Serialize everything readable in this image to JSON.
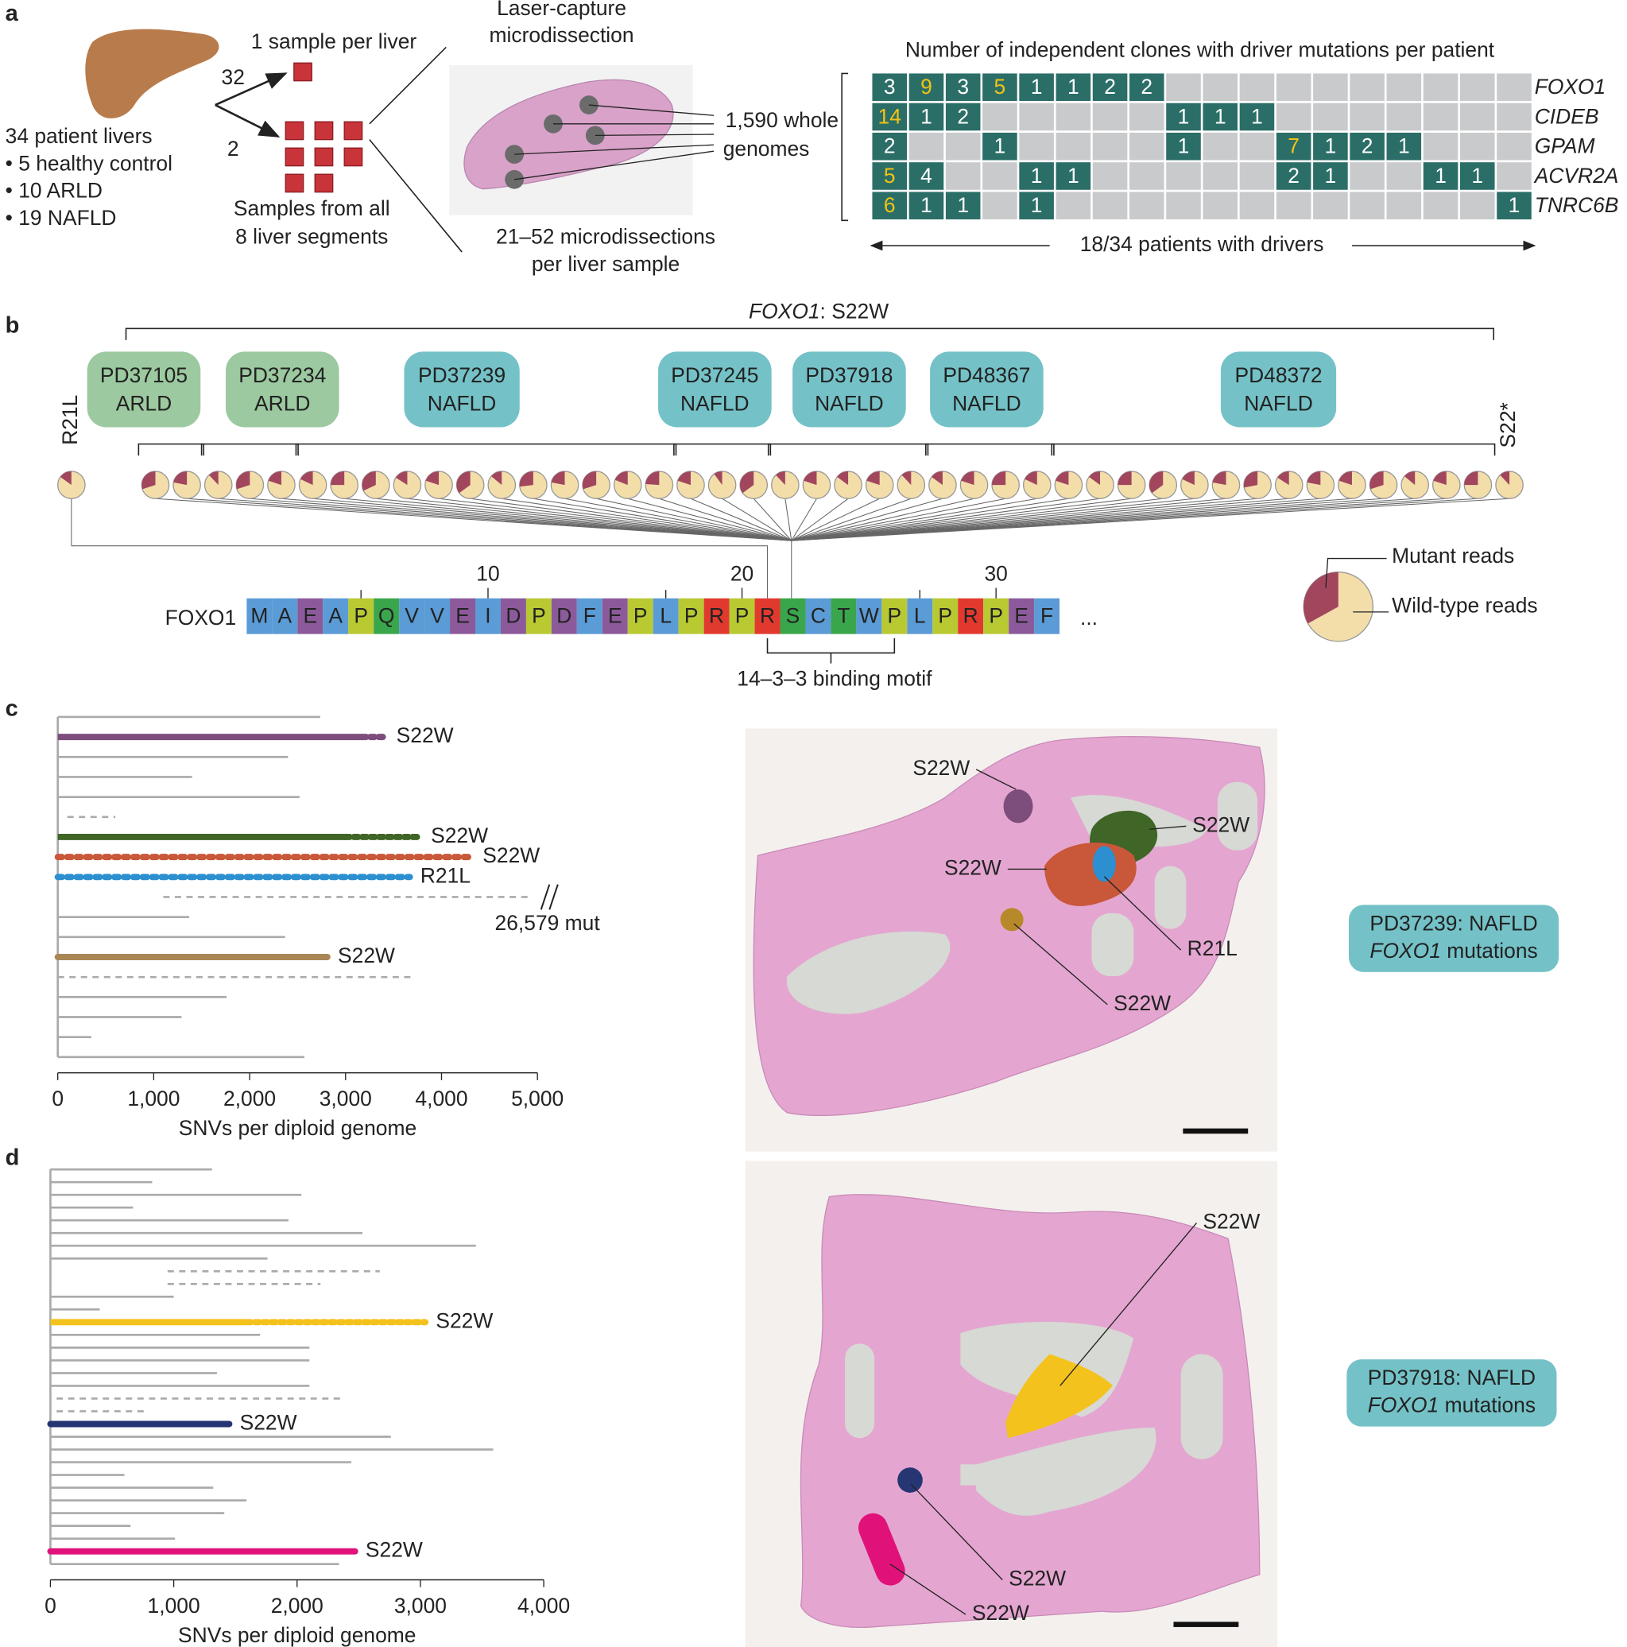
{
  "panel_labels": [
    "a",
    "b",
    "c",
    "d"
  ],
  "panel_a": {
    "livers": [
      "34 patient livers",
      "• 5 healthy control",
      "• 10 ARLD",
      "• 19 NAFLD"
    ],
    "arrow_labels": [
      "32",
      "2"
    ],
    "one_sample": "1 sample per liver",
    "all_segments": [
      "Samples from all",
      "8 liver segments"
    ],
    "lcm": [
      "Laser-capture",
      "microdissection"
    ],
    "genomes": [
      "1,590 whole",
      "genomes"
    ],
    "microdissections": [
      "21–52 microdissections",
      "per liver sample"
    ],
    "heatmap": {
      "title": "Number of independent clones with driver mutations per patient",
      "genes": [
        "FOXO1",
        "CIDEB",
        "GPAM",
        "ACVR2A",
        "TNRC6B"
      ],
      "cells": [
        [
          3,
          9,
          3,
          5,
          1,
          1,
          2,
          2,
          null,
          null,
          null,
          null,
          null,
          null,
          null,
          null,
          null,
          null
        ],
        [
          14,
          1,
          2,
          null,
          null,
          null,
          null,
          null,
          1,
          1,
          1,
          null,
          null,
          null,
          null,
          null,
          null,
          null
        ],
        [
          2,
          null,
          null,
          1,
          null,
          null,
          null,
          null,
          1,
          null,
          null,
          7,
          1,
          2,
          1,
          null,
          null,
          null
        ],
        [
          5,
          4,
          null,
          null,
          1,
          1,
          null,
          null,
          null,
          null,
          null,
          2,
          1,
          null,
          null,
          1,
          1,
          null
        ],
        [
          6,
          1,
          1,
          null,
          1,
          null,
          null,
          null,
          null,
          null,
          null,
          null,
          null,
          null,
          null,
          null,
          null,
          1
        ]
      ],
      "highlighted_columns": [
        [
          1,
          3
        ],
        [
          0
        ],
        [
          11
        ],
        [
          0
        ],
        [
          0
        ]
      ],
      "cell_color": "#2b6e67",
      "empty_color": "#c9cacc",
      "highlight_text_color": "#f2c315",
      "footer": "18/34 patients with drivers"
    }
  },
  "panel_b": {
    "title_parts": [
      "FOXO1",
      ": S22W"
    ],
    "group_colors": {
      "ARLD": "#9cc9a0",
      "NAFLD": "#74c2c7"
    },
    "patients": [
      {
        "id": "PD37105",
        "group": "ARLD",
        "mutant_fraction": [
          0.3,
          0.22
        ]
      },
      {
        "id": "PD37234",
        "group": "ARLD",
        "mutant_fraction": [
          0.12,
          0.3,
          0.2
        ]
      },
      {
        "id": "PD37239",
        "group": "NAFLD",
        "mutant_fraction": [
          0.18,
          0.25,
          0.32,
          0.16,
          0.2,
          0.35,
          0.14,
          0.27,
          0.22,
          0.3,
          0.19,
          0.24
        ]
      },
      {
        "id": "PD37245",
        "group": "NAFLD",
        "mutant_fraction": [
          0.2,
          0.1,
          0.35
        ]
      },
      {
        "id": "PD37918",
        "group": "NAFLD",
        "mutant_fraction": [
          0.12,
          0.2,
          0.15,
          0.2,
          0.12
        ]
      },
      {
        "id": "PD48367",
        "group": "NAFLD",
        "mutant_fraction": [
          0.15,
          0.2,
          0.25,
          0.18
        ]
      },
      {
        "id": "PD48372",
        "group": "NAFLD",
        "mutant_fraction": [
          0.2,
          0.15,
          0.25,
          0.35,
          0.18,
          0.22,
          0.28,
          0.16,
          0.22,
          0.2,
          0.3,
          0.14,
          0.2,
          0.25
        ]
      }
    ],
    "other_mutations": [
      {
        "label": "R21L",
        "mutant_fraction": 0.15
      },
      {
        "label": "S22*",
        "mutant_fraction": 0.12
      }
    ],
    "pie_colors": {
      "mutant": "#a2465e",
      "wild_type": "#f3deaa"
    },
    "protein": "FOXO1",
    "residues": [
      "M",
      "A",
      "E",
      "A",
      "P",
      "Q",
      "V",
      "V",
      "E",
      "I",
      "D",
      "P",
      "D",
      "F",
      "E",
      "P",
      "L",
      "P",
      "R",
      "P",
      "R",
      "S",
      "C",
      "T",
      "W",
      "P",
      "L",
      "P",
      "R",
      "P",
      "E",
      "F"
    ],
    "more": "...",
    "residue_colors": {
      "M": "#5b9bd6",
      "A": "#5b9bd6",
      "V": "#5b9bd6",
      "I": "#5b9bd6",
      "F": "#5b9bd6",
      "L": "#5b9bd6",
      "C": "#5b9bd6",
      "W": "#5b9bd6",
      "E": "#8c5a9b",
      "D": "#8c5a9b",
      "P": "#b8c932",
      "Q": "#3aa64b",
      "S": "#3aa64b",
      "T": "#3aa64b",
      "R": "#e2392f"
    },
    "position_ticks": [
      10,
      20,
      30
    ],
    "motif": "14–3–3 binding motif",
    "legend": [
      "Mutant reads",
      "Wild-type reads"
    ]
  },
  "panel_c": {
    "tree": {
      "xlim": [
        0,
        5000
      ],
      "xticks": [
        0,
        {
          "value": 1000,
          "label": "1,000"
        },
        {
          "value": 2000,
          "label": "2,000"
        },
        {
          "value": 3000,
          "label": "3,000"
        },
        {
          "value": 4000,
          "label": "4,000"
        },
        {
          "value": 5000,
          "label": "5,000"
        }
      ],
      "xlabel": "SNVs per diploid genome",
      "rows": [
        {
          "end": 2735
        },
        {
          "end": 3420,
          "solid_end": 3170,
          "color": "#7d4e7b",
          "label": "S22W"
        },
        {
          "end": 2400
        },
        {
          "end": 1400
        },
        {
          "end": 2520
        },
        {
          "start": 100,
          "end": 600,
          "style": "dashed"
        },
        {
          "end": 3780,
          "solid_end": 3000,
          "color": "#3f6527",
          "label": "S22W"
        },
        {
          "end": 4320,
          "style": "dotted",
          "color": "#c9573a",
          "label": "S22W"
        },
        {
          "end": 3670,
          "style": "dotted",
          "color": "#2c8fcf",
          "label": "R21L"
        },
        {
          "start": 1100,
          "end": 4950,
          "style": "dashed",
          "annotation": "26,579 mut"
        },
        {
          "end": 1370
        },
        {
          "end": 2370
        },
        {
          "end": 2810,
          "color": "#a98656",
          "label": "S22W"
        },
        {
          "start": 0,
          "end": 3720,
          "style": "dashed"
        },
        {
          "end": 1760
        },
        {
          "end": 1290
        },
        {
          "end": 350
        },
        {
          "end": 2570
        }
      ]
    },
    "image": {
      "annotations": [
        {
          "text": "S22W",
          "color": "#7d4e7b"
        },
        {
          "text": "S22W",
          "color": "#3f6527"
        },
        {
          "text": "S22W",
          "color": "#c9573a"
        },
        {
          "text": "R21L",
          "color": "#2c8fcf"
        },
        {
          "text": "S22W",
          "color": "#b8892a"
        }
      ]
    },
    "box": [
      "PD37239: NAFLD",
      [
        "FOXO1",
        " mutations"
      ]
    ]
  },
  "panel_d": {
    "tree": {
      "xlim": [
        0,
        4000
      ],
      "xticks": [
        0,
        {
          "value": 1000,
          "label": "1,000"
        },
        {
          "value": 2000,
          "label": "2,000"
        },
        {
          "value": 3000,
          "label": "3,000"
        },
        {
          "value": 4000,
          "label": "4,000"
        }
      ],
      "xlabel": "SNVs per diploid genome",
      "rows": [
        {
          "end": 1310
        },
        {
          "end": 825
        },
        {
          "end": 2035
        },
        {
          "end": 670
        },
        {
          "end": 1930
        },
        {
          "end": 2530
        },
        {
          "end": 3450
        },
        {
          "end": 1760
        },
        {
          "start": 950,
          "end": 2670,
          "style": "dashed"
        },
        {
          "start": 950,
          "end": 2190,
          "style": "dashed"
        },
        {
          "end": 1000
        },
        {
          "end": 400
        },
        {
          "end": 3040,
          "solid_end": 1590,
          "color": "#f4c21c",
          "label": "S22W"
        },
        {
          "end": 1700
        },
        {
          "end": 2100
        },
        {
          "end": 2100
        },
        {
          "end": 1350
        },
        {
          "end": 2100
        },
        {
          "start": 50,
          "end": 2360,
          "style": "dashed"
        },
        {
          "start": 50,
          "end": 770,
          "style": "dashed"
        },
        {
          "end": 1450,
          "color": "#263673",
          "label": "S22W"
        },
        {
          "end": 2760
        },
        {
          "end": 3590
        },
        {
          "end": 2440
        },
        {
          "end": 600
        },
        {
          "end": 1320
        },
        {
          "end": 1590
        },
        {
          "end": 1410
        },
        {
          "end": 650
        },
        {
          "end": 1010
        },
        {
          "end": 2470,
          "color": "#e0127a",
          "label": "S22W"
        },
        {
          "end": 2340
        }
      ]
    },
    "image": {
      "annotations": [
        {
          "text": "S22W",
          "color": "#f4c21c"
        },
        {
          "text": "S22W",
          "color": "#263673"
        },
        {
          "text": "S22W",
          "color": "#e0127a"
        }
      ]
    },
    "box": [
      "PD37918: NAFLD",
      [
        "FOXO1",
        " mutations"
      ]
    ]
  }
}
